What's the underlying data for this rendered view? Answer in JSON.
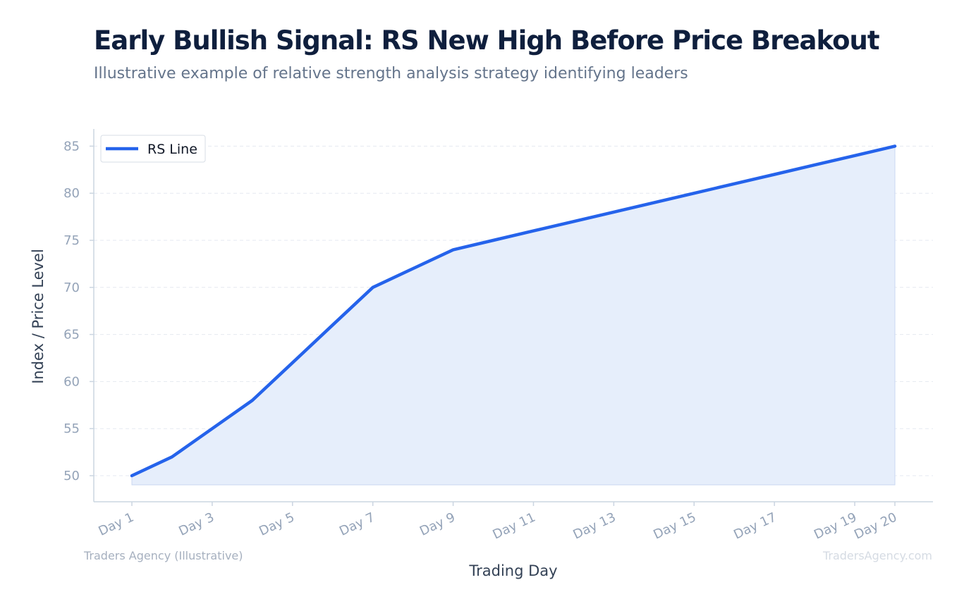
{
  "header": {
    "title": "Early Bullish Signal: RS New High Before Price Breakout",
    "subtitle": "Illustrative example of relative strength analysis strategy identifying leaders"
  },
  "footer": {
    "left": "Traders Agency (Illustrative)",
    "right": "TradersAgency.com"
  },
  "colors": {
    "line": "#2563eb",
    "fill": "#e6eefb",
    "grid": "#e5e9f0",
    "axis": "#cbd5e1"
  },
  "chart_data": {
    "type": "area",
    "xlabel": "Trading Day",
    "ylabel": "Index / Price Level",
    "legend_position": "top-left",
    "grid": true,
    "ylim": [
      47,
      87
    ],
    "yticks": [
      50,
      55,
      60,
      65,
      70,
      75,
      80,
      85
    ],
    "xtick_labels": [
      "Day 1",
      "Day 3",
      "Day 5",
      "Day 7",
      "Day 9",
      "Day 11",
      "Day 13",
      "Day 15",
      "Day 17",
      "Day 19",
      "Day 20"
    ],
    "categories": [
      "Day 1",
      "Day 2",
      "Day 3",
      "Day 4",
      "Day 5",
      "Day 6",
      "Day 7",
      "Day 8",
      "Day 9",
      "Day 10",
      "Day 11",
      "Day 12",
      "Day 13",
      "Day 14",
      "Day 15",
      "Day 16",
      "Day 17",
      "Day 18",
      "Day 19",
      "Day 20"
    ],
    "series": [
      {
        "name": "RS Line",
        "values": [
          50,
          52,
          55,
          58,
          62,
          66,
          70,
          72,
          74,
          75,
          76,
          77,
          78,
          79,
          80,
          81,
          82,
          83,
          84,
          85
        ]
      }
    ]
  }
}
